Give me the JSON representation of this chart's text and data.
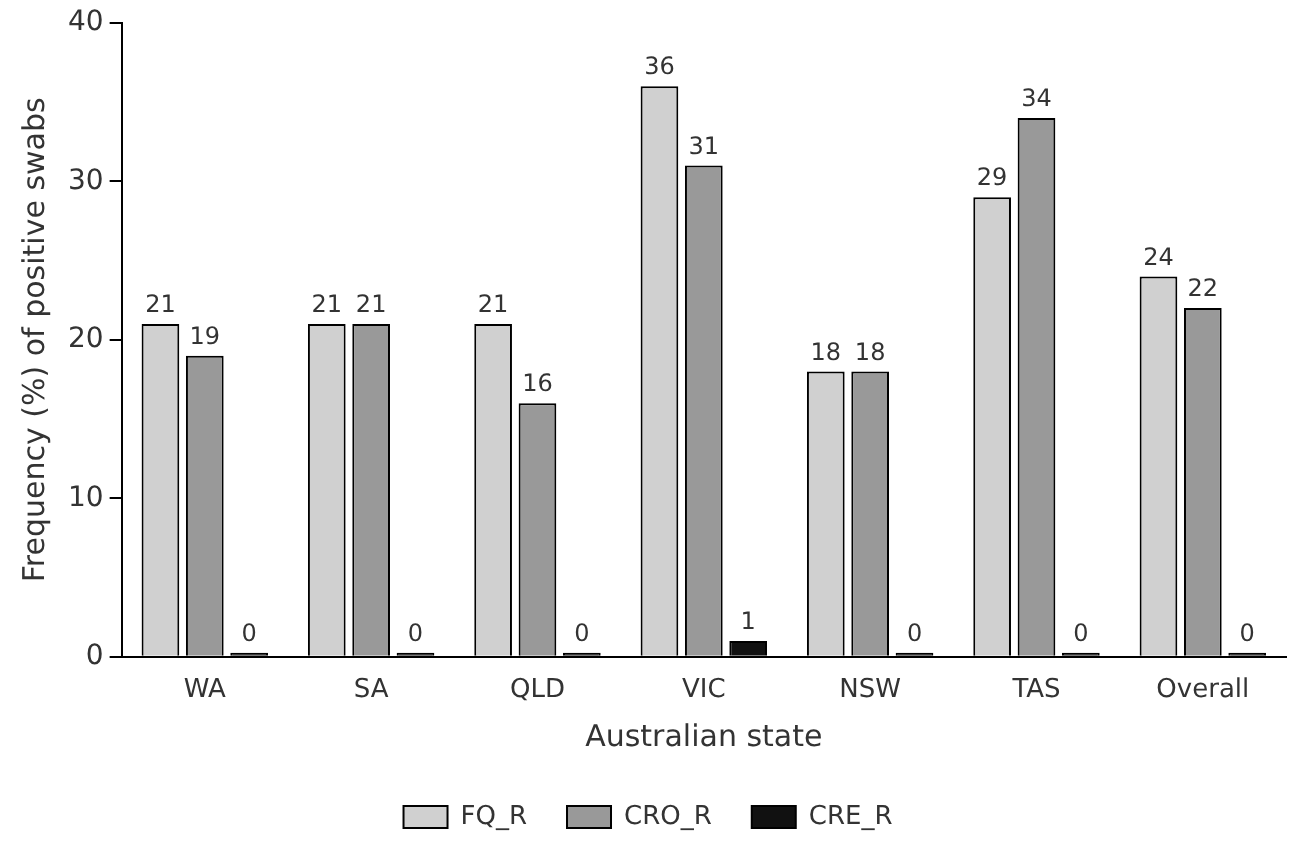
{
  "chart_data": {
    "type": "bar",
    "xlabel": "Australian state",
    "ylabel": "Frequency (%) of positive swabs",
    "categories": [
      "WA",
      "SA",
      "QLD",
      "VIC",
      "NSW",
      "TAS",
      "Overall"
    ],
    "series": [
      {
        "name": "FQ_R",
        "color": "#d0d0d0",
        "values": [
          21,
          21,
          21,
          36,
          18,
          29,
          24
        ]
      },
      {
        "name": "CRO_R",
        "color": "#999999",
        "values": [
          19,
          21,
          16,
          31,
          18,
          34,
          22
        ]
      },
      {
        "name": "CRE_R",
        "color": "#111111",
        "values": [
          0,
          0,
          0,
          1,
          0,
          0,
          0
        ]
      }
    ],
    "ylim": [
      0,
      40
    ],
    "yticks": [
      0,
      10,
      20,
      30,
      40
    ],
    "grid": false,
    "legend": "bottom",
    "data_labels": true
  }
}
